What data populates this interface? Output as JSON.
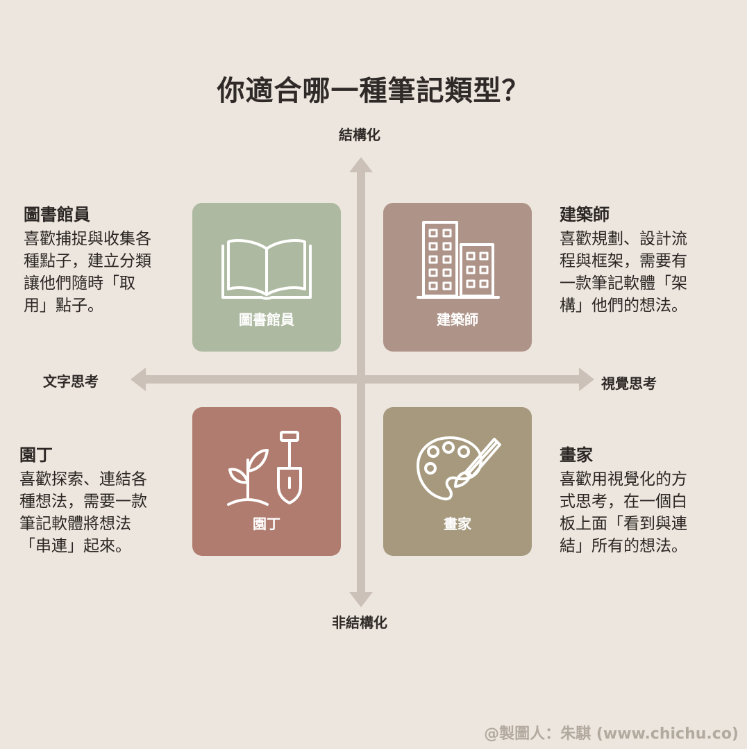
{
  "title": "你適合哪一種筆記類型？",
  "axes": {
    "top": "結構化",
    "bottom": "非結構化",
    "left": "文字思考",
    "right": "視覺思考",
    "color": "#cbc1b8"
  },
  "quadrants": {
    "librarian": {
      "card_label": "圖書館員",
      "icon": "open-book-icon",
      "color": "#adb9a0",
      "heading": "圖書館員",
      "lines": [
        "喜歡捕捉與收集各",
        "種點子，建立分類",
        "讓他們隨時「取",
        "用」點子。"
      ]
    },
    "architect": {
      "card_label": "建築師",
      "icon": "buildings-icon",
      "color": "#ae9388",
      "heading": "建築師",
      "lines": [
        "喜歡規劃、設計流",
        "程與框架，需要有",
        "一款筆記軟體「架",
        "構」他們的想法。"
      ]
    },
    "gardener": {
      "card_label": "園丁",
      "icon": "plant-shovel-icon",
      "color": "#b07c6f",
      "heading": "園丁",
      "lines": [
        "喜歡探索、連結各",
        "種想法，需要一款",
        "筆記軟體將想法",
        "「串連」起來。"
      ]
    },
    "painter": {
      "card_label": "畫家",
      "icon": "palette-brush-icon",
      "color": "#a6997e",
      "heading": "畫家",
      "lines": [
        "喜歡用視覺化的方",
        "式思考，在一個白",
        "板上面「看到與連",
        "結」所有的想法。"
      ]
    }
  },
  "credit": "@製圖人：朱騏 (www.chichu.co)"
}
